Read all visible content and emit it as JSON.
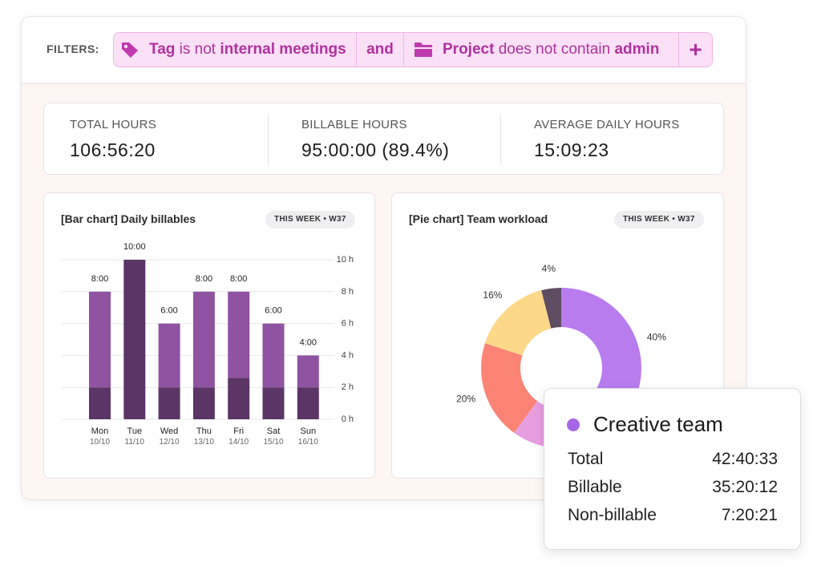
{
  "filters": {
    "label": "FILTERS:",
    "tag_filter": {
      "field": "Tag",
      "operator": "is not",
      "value": "internal meetings",
      "icon": "tag-icon"
    },
    "conjunction": "and",
    "project_filter": {
      "field": "Project",
      "operator": "does not contain",
      "value": "admin",
      "icon": "folder-icon"
    },
    "add_label": "+"
  },
  "stats": {
    "total_hours": {
      "label": "TOTAL HOURS",
      "value": "106:56:20"
    },
    "billable_hours": {
      "label": "BILLABLE HOURS",
      "value": "95:00:00 (89.4%)"
    },
    "avg_daily_hours": {
      "label": "AVERAGE DAILY HOURS",
      "value": "15:09:23"
    }
  },
  "bar_card": {
    "title": "[Bar chart] Daily billables",
    "badge": "THIS WEEK • W37"
  },
  "pie_card": {
    "title": "[Pie chart] Team workload",
    "badge": "THIS WEEK • W37"
  },
  "chart_data": [
    {
      "type": "bar",
      "title": "[Bar chart] Daily billables",
      "categories": [
        "Mon",
        "Tue",
        "Wed",
        "Thu",
        "Fri",
        "Sat",
        "Sun"
      ],
      "dates": [
        "10/10",
        "11/10",
        "12/10",
        "13/10",
        "14/10",
        "15/10",
        "16/10"
      ],
      "data_labels": [
        "8:00",
        "10:00",
        "6:00",
        "8:00",
        "8:00",
        "6:00",
        "4:00"
      ],
      "series": [
        {
          "values": [
            2,
            10,
            2,
            2,
            2.6,
            2,
            2
          ],
          "color": "#5b3566"
        },
        {
          "values": [
            6,
            0,
            4,
            6,
            5.4,
            4,
            2
          ],
          "color": "#8f53a1"
        }
      ],
      "totals": [
        8,
        10,
        6,
        8,
        8,
        6,
        4
      ],
      "y_ticks": [
        "0 h",
        "2 h",
        "4 h",
        "6 h",
        "8 h",
        "10 h"
      ],
      "ylim": [
        0,
        10
      ],
      "grid": true
    },
    {
      "type": "pie",
      "title": "[Pie chart] Team workload",
      "slices": [
        {
          "value": 40,
          "label": "40%",
          "color": "#b87cef"
        },
        {
          "value": 20,
          "label": "",
          "color": "#e79ee0"
        },
        {
          "value": 20,
          "label": "20%",
          "color": "#fb8374"
        },
        {
          "value": 16,
          "label": "16%",
          "color": "#fdd888"
        },
        {
          "value": 4,
          "label": "4%",
          "color": "#5f4e63"
        }
      ],
      "donut": true
    }
  ],
  "tooltip": {
    "team": "Creative team",
    "color": "#a567e8",
    "rows": [
      {
        "label": "Total",
        "value": "42:40:33"
      },
      {
        "label": "Billable",
        "value": "35:20:12"
      },
      {
        "label": "Non-billable",
        "value": "7:20:21"
      }
    ]
  }
}
